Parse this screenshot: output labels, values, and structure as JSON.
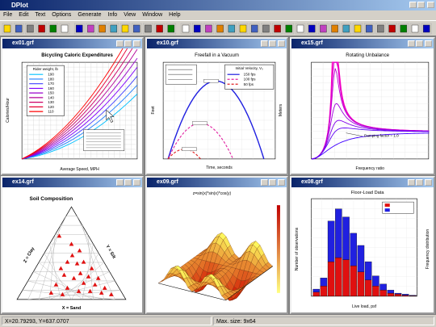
{
  "window": {
    "title": "DPlot"
  },
  "menu": [
    "File",
    "Edit",
    "Text",
    "Options",
    "Generate",
    "Info",
    "View",
    "Window",
    "Help"
  ],
  "documents": [
    {
      "title": "ex01.grf",
      "chart_title": "Bicycling Caloric Expenditures",
      "legend_title": "Rider weight, lb",
      "legend": [
        "190",
        "180",
        "170",
        "160",
        "150",
        "140",
        "130",
        "120",
        "110"
      ],
      "x_label": "Average Speed, MPH",
      "y_label": "Calories/Hour"
    },
    {
      "title": "ex10.grf",
      "chart_title": "Freefall in a Vacuum",
      "legend_title": "Initial Velocity, V₀",
      "legend": [
        "150 fps",
        "100 fps",
        "50 fps"
      ],
      "x_label": "Time, seconds",
      "y_label": "Feet",
      "y2_label": "Meters"
    },
    {
      "title": "ex15.grf",
      "chart_title": "Rotating Unbalance",
      "x_label": "Frequency ratio",
      "note": "Damping factor = 1.0"
    },
    {
      "title": "ex14.grf",
      "chart_title": "Soil Composition",
      "labels": [
        "Z = Clay",
        "Y = Silt",
        "X = Sand"
      ]
    },
    {
      "title": "ex09.grf",
      "chart_title": "z=sin(x)*sin(x)*cos(y)"
    },
    {
      "title": "ex08.grf",
      "chart_title": "Floor-Load Data",
      "x_label": "Live load, psf",
      "y_label": "Number of observations",
      "y2_label": "Frequency distribution"
    }
  ],
  "status": [
    "X=20.79293, Y=637.0707",
    "Max. size: 9x64"
  ]
}
